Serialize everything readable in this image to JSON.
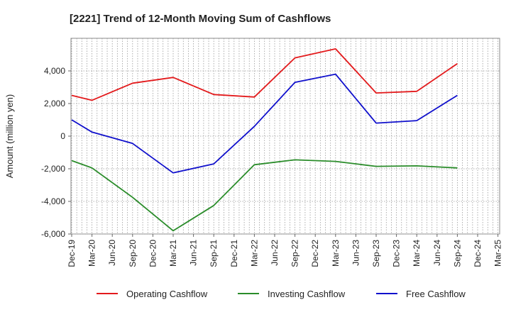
{
  "chart_data": {
    "type": "line",
    "title": "[2221]  Trend of 12-Month Moving Sum of Cashflows",
    "ylabel": "Amount (million yen)",
    "xlabel": "",
    "categories": [
      "Dec-19",
      "Mar-20",
      "Jun-20",
      "Sep-20",
      "Dec-20",
      "Mar-21",
      "Jun-21",
      "Sep-21",
      "Dec-21",
      "Mar-22",
      "Jun-22",
      "Sep-22",
      "Dec-22",
      "Mar-23",
      "Jun-23",
      "Sep-23",
      "Dec-23",
      "Mar-24",
      "Jun-24",
      "Sep-24",
      "Dec-24",
      "Mar-25"
    ],
    "ylim": [
      -6000,
      6000
    ],
    "yticks": [
      -6000,
      -4000,
      -2000,
      0,
      2000,
      4000
    ],
    "ytick_labels": [
      "-6,000",
      "-4,000",
      "-2,000",
      "0",
      "2,000",
      "4,000"
    ],
    "grid": true,
    "legend_position": "bottom",
    "series": [
      {
        "name": "Operating Cashflow",
        "color": "#e31a1c",
        "points": [
          [
            0,
            2500
          ],
          [
            1,
            2200
          ],
          [
            3,
            3250
          ],
          [
            5,
            3600
          ],
          [
            7,
            2550
          ],
          [
            9,
            2400
          ],
          [
            11,
            4800
          ],
          [
            13,
            5350
          ],
          [
            15,
            2650
          ],
          [
            17,
            2750
          ],
          [
            19,
            4450
          ]
        ]
      },
      {
        "name": "Investing Cashflow",
        "color": "#2a8c2a",
        "points": [
          [
            0,
            -1500
          ],
          [
            1,
            -1950
          ],
          [
            3,
            -3750
          ],
          [
            5,
            -5800
          ],
          [
            7,
            -4250
          ],
          [
            9,
            -1750
          ],
          [
            11,
            -1450
          ],
          [
            13,
            -1550
          ],
          [
            15,
            -1850
          ],
          [
            17,
            -1820
          ],
          [
            19,
            -1950
          ]
        ]
      },
      {
        "name": "Free Cashflow",
        "color": "#1010cc",
        "points": [
          [
            0,
            1000
          ],
          [
            1,
            250
          ],
          [
            3,
            -450
          ],
          [
            5,
            -2250
          ],
          [
            7,
            -1700
          ],
          [
            9,
            600
          ],
          [
            11,
            3300
          ],
          [
            13,
            3800
          ],
          [
            15,
            800
          ],
          [
            17,
            950
          ],
          [
            19,
            2500
          ]
        ]
      }
    ]
  }
}
